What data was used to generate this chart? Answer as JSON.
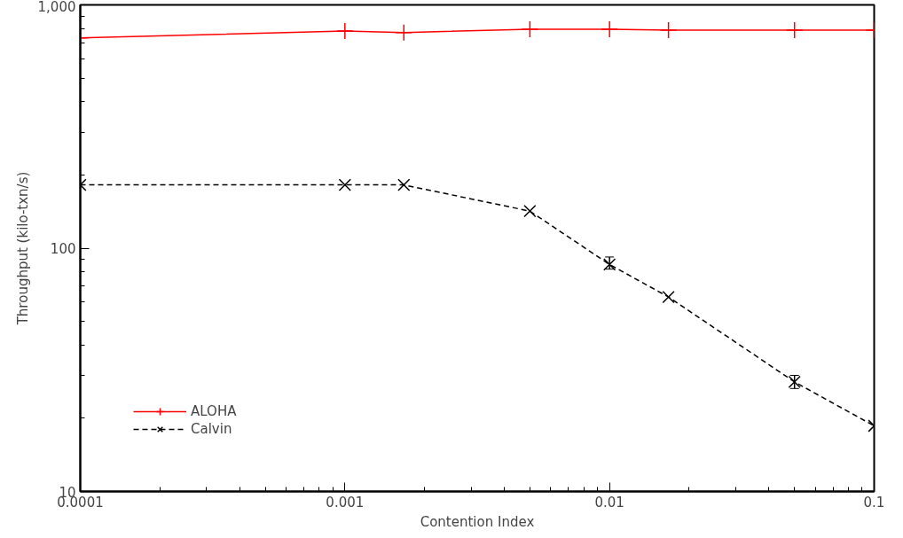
{
  "chart_data": {
    "type": "line",
    "xlabel": "Contention Index",
    "ylabel": "Throughput (kilo-txn/s)",
    "log": "xy",
    "xlim": [
      0.0001,
      0.1
    ],
    "ylim": [
      10,
      1000
    ],
    "xticks": [
      0.0001,
      0.001,
      0.01,
      0.1
    ],
    "yticks": [
      10,
      100,
      {
        "value": 1000,
        "label": "1,000"
      }
    ],
    "grid": false,
    "legend": "bottom left",
    "x": [
      0.0001,
      0.001,
      0.00167,
      0.005,
      0.01,
      0.0167,
      0.05,
      0.1
    ],
    "series": [
      {
        "name": "ALOHA",
        "color": "#ff0000",
        "marker": "cross",
        "line_style": "solid",
        "values": [
          731,
          780,
          770,
          794,
          794,
          787,
          787,
          787
        ]
      },
      {
        "name": "Calvin",
        "color": "#000000",
        "marker": "x",
        "line_style": "dashed",
        "values": [
          182,
          182,
          182,
          142,
          85.7,
          63,
          28.2,
          18.6
        ],
        "errors": [
          null,
          null,
          null,
          null,
          [
            82,
            92
          ],
          null,
          [
            26.5,
            30
          ],
          null
        ]
      }
    ]
  }
}
